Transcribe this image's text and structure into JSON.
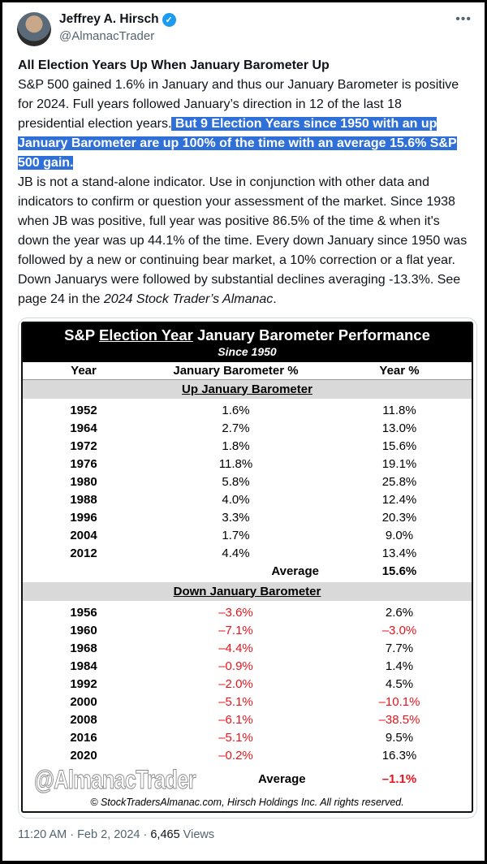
{
  "author": {
    "name": "Jeffrey A. Hirsch",
    "handle": "@AlmanacTrader"
  },
  "tweet": {
    "title": "All Election Years Up When January Barometer Up",
    "p1": "S&P 500 gained 1.6% in January and thus our January Barometer is positive for 2024. Full years followed January’s direction in 12 of the last 18 presidential election years.",
    "p1_highlight": " But 9 Election Years since 1950 with an up January Barometer are up 100% of the time with an average 15.6% S&P 500 gain.",
    "p2": "JB is not a stand-alone indicator. Use in conjunction with other data and indicators to confirm or question your assessment of the market. Since 1938 when JB was positive, full year was positive 86.5% of the time & when it's down the year was up 44.1% of the time. Every down January since 1950 was followed by a new or continuing bear market, a 10% correction or a flat year. Down Januarys were followed by substantial declines averaging -13.3%. See page 24 in the ",
    "p2_italic": "2024 Stock Trader’s Almanac",
    "p2_end": "."
  },
  "table": {
    "title_pre": "S&P ",
    "title_u": "Election Year",
    "title_post": " January Barometer Performance",
    "subtitle": "Since 1950",
    "headers": [
      "Year",
      "January Barometer %",
      "Year %"
    ],
    "up_label": "Up January Barometer",
    "up_rows": [
      [
        "1952",
        "1.6%",
        "11.8%"
      ],
      [
        "1964",
        "2.7%",
        "13.0%"
      ],
      [
        "1972",
        "1.8%",
        "15.6%"
      ],
      [
        "1976",
        "11.8%",
        "19.1%"
      ],
      [
        "1980",
        "5.8%",
        "25.8%"
      ],
      [
        "1988",
        "4.0%",
        "12.4%"
      ],
      [
        "1996",
        "3.3%",
        "20.3%"
      ],
      [
        "2004",
        "1.7%",
        "9.0%"
      ],
      [
        "2012",
        "4.4%",
        "13.4%"
      ]
    ],
    "up_avg": [
      "Average",
      "15.6%"
    ],
    "down_label": "Down January Barometer",
    "down_rows": [
      [
        "1956",
        "–3.6%",
        "2.6%"
      ],
      [
        "1960",
        "–7.1%",
        "–3.0%"
      ],
      [
        "1968",
        "–4.4%",
        "7.7%"
      ],
      [
        "1984",
        "–0.9%",
        "1.4%"
      ],
      [
        "1992",
        "–2.0%",
        "4.5%"
      ],
      [
        "2000",
        "–5.1%",
        "–10.1%"
      ],
      [
        "2008",
        "–6.1%",
        "–38.5%"
      ],
      [
        "2016",
        "–5.1%",
        "9.5%"
      ],
      [
        "2020",
        "–0.2%",
        "16.3%"
      ]
    ],
    "down_avg": [
      "Average",
      "–1.1%"
    ],
    "watermark": "@AlmanacTrader",
    "copyright": "© StockTradersAlmanac.com, Hirsch Holdings Inc. All rights reserved."
  },
  "footer": {
    "time": "11:20 AM · Feb 2, 2024 · ",
    "views": "6,465",
    "views_label": " Views"
  },
  "colors": {
    "negative": "#e8141c",
    "highlight": "#2f6fd8",
    "verified": "#1d9bf0"
  }
}
